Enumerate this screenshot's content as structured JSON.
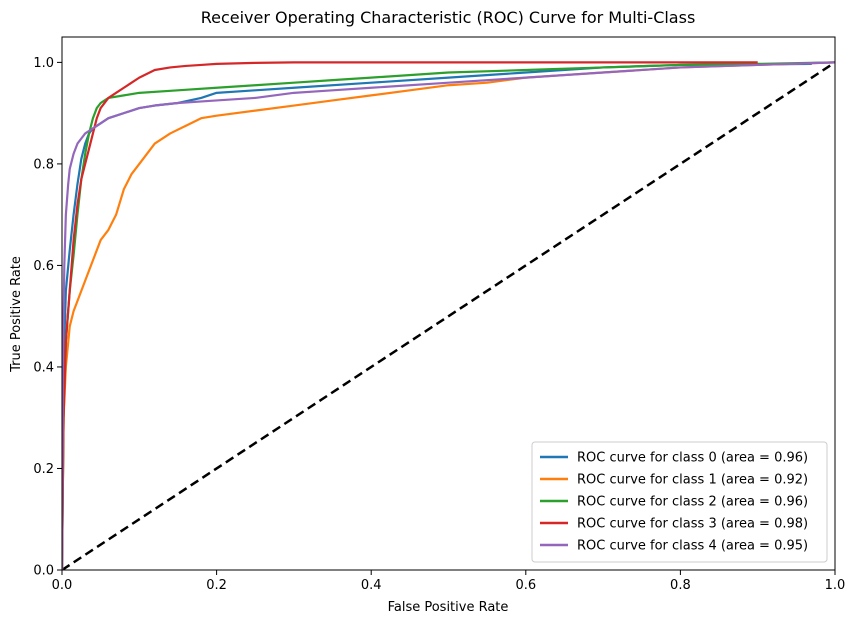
{
  "chart_data": {
    "type": "line",
    "title": "Receiver Operating Characteristic (ROC) Curve for Multi-Class",
    "xlabel": "False Positive Rate",
    "ylabel": "True Positive Rate",
    "xlim": [
      0.0,
      1.0
    ],
    "ylim": [
      0.0,
      1.05
    ],
    "xticks": [
      "0.0",
      "0.2",
      "0.4",
      "0.6",
      "0.8",
      "1.0"
    ],
    "yticks": [
      "0.0",
      "0.2",
      "0.4",
      "0.6",
      "0.8",
      "1.0"
    ],
    "grid": false,
    "legend_position": "lower-right",
    "diagonal": {
      "style": "dashed",
      "color": "#000000",
      "x": [
        0,
        1
      ],
      "y": [
        0,
        1
      ]
    },
    "series": [
      {
        "name": "ROC curve for class 0 (area = 0.96)",
        "color": "#1f77b4",
        "x": [
          0,
          0.002,
          0.005,
          0.01,
          0.015,
          0.02,
          0.025,
          0.03,
          0.035,
          0.04,
          0.05,
          0.06,
          0.08,
          0.1,
          0.12,
          0.15,
          0.18,
          0.2,
          0.25,
          0.3,
          0.4,
          0.5,
          0.6,
          0.7,
          0.8,
          0.9,
          0.97
        ],
        "y": [
          0,
          0.4,
          0.55,
          0.63,
          0.7,
          0.76,
          0.81,
          0.84,
          0.86,
          0.87,
          0.88,
          0.89,
          0.9,
          0.91,
          0.915,
          0.92,
          0.93,
          0.94,
          0.945,
          0.95,
          0.96,
          0.97,
          0.98,
          0.99,
          0.995,
          0.996,
          0.997
        ]
      },
      {
        "name": "ROC curve for class 1 (area = 0.92)",
        "color": "#ff7f0e",
        "x": [
          0,
          0.002,
          0.005,
          0.01,
          0.015,
          0.02,
          0.03,
          0.04,
          0.05,
          0.06,
          0.07,
          0.08,
          0.09,
          0.1,
          0.12,
          0.14,
          0.16,
          0.18,
          0.2,
          0.25,
          0.3,
          0.35,
          0.4,
          0.45,
          0.5,
          0.55,
          0.6,
          0.65,
          0.7,
          0.8,
          0.9,
          1.0
        ],
        "y": [
          0,
          0.3,
          0.4,
          0.48,
          0.51,
          0.53,
          0.57,
          0.61,
          0.65,
          0.67,
          0.7,
          0.75,
          0.78,
          0.8,
          0.84,
          0.86,
          0.875,
          0.89,
          0.895,
          0.905,
          0.915,
          0.925,
          0.935,
          0.945,
          0.955,
          0.96,
          0.97,
          0.975,
          0.98,
          0.99,
          0.995,
          1.0
        ]
      },
      {
        "name": "ROC curve for class 2 (area = 0.96)",
        "color": "#2ca02c",
        "x": [
          0,
          0.002,
          0.005,
          0.01,
          0.015,
          0.02,
          0.025,
          0.03,
          0.035,
          0.04,
          0.045,
          0.05,
          0.06,
          0.08,
          0.1,
          0.15,
          0.2,
          0.25,
          0.3,
          0.35,
          0.4,
          0.5,
          0.6,
          0.7,
          0.8,
          0.9,
          1.0
        ],
        "y": [
          0,
          0.3,
          0.45,
          0.55,
          0.62,
          0.7,
          0.77,
          0.82,
          0.86,
          0.89,
          0.91,
          0.92,
          0.93,
          0.935,
          0.94,
          0.945,
          0.95,
          0.955,
          0.96,
          0.965,
          0.97,
          0.98,
          0.985,
          0.99,
          0.995,
          0.997,
          1.0
        ]
      },
      {
        "name": "ROC curve for class 3 (area = 0.98)",
        "color": "#d62728",
        "x": [
          0,
          0.002,
          0.005,
          0.01,
          0.015,
          0.02,
          0.025,
          0.03,
          0.035,
          0.04,
          0.045,
          0.05,
          0.06,
          0.07,
          0.08,
          0.09,
          0.1,
          0.12,
          0.14,
          0.16,
          0.18,
          0.2,
          0.25,
          0.3,
          0.4,
          0.6,
          0.8,
          0.9
        ],
        "y": [
          0,
          0.3,
          0.45,
          0.55,
          0.65,
          0.72,
          0.77,
          0.8,
          0.83,
          0.86,
          0.89,
          0.91,
          0.93,
          0.94,
          0.95,
          0.96,
          0.97,
          0.985,
          0.99,
          0.993,
          0.995,
          0.997,
          0.999,
          1.0,
          1.0,
          1.0,
          1.0,
          1.0
        ]
      },
      {
        "name": "ROC curve for class 4 (area = 0.95)",
        "color": "#9467bd",
        "x": [
          0,
          0.001,
          0.003,
          0.005,
          0.008,
          0.01,
          0.015,
          0.02,
          0.025,
          0.03,
          0.04,
          0.05,
          0.06,
          0.08,
          0.1,
          0.12,
          0.15,
          0.2,
          0.25,
          0.3,
          0.35,
          0.4,
          0.5,
          0.6,
          0.7,
          0.8,
          0.9,
          1.0
        ],
        "y": [
          0,
          0.4,
          0.6,
          0.7,
          0.76,
          0.79,
          0.82,
          0.84,
          0.85,
          0.86,
          0.87,
          0.88,
          0.89,
          0.9,
          0.91,
          0.915,
          0.92,
          0.925,
          0.93,
          0.94,
          0.945,
          0.95,
          0.96,
          0.97,
          0.98,
          0.99,
          0.995,
          1.0
        ]
      }
    ]
  }
}
